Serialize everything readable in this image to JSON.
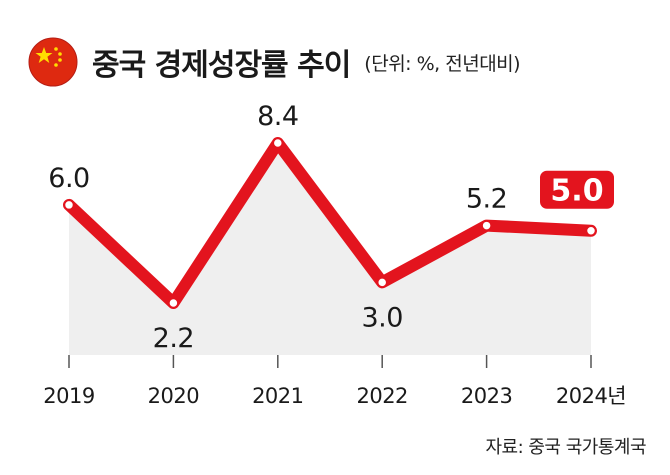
{
  "header": {
    "title": "중국 경제성장률 추이",
    "unit": "(단위: %, 전년대비)",
    "flag_icon": "china-flag-icon"
  },
  "source": "자료: 중국 국가통계국",
  "colors": {
    "line": "#e3141e",
    "area": "#efefef",
    "highlight_label_bg": "#e3141e",
    "highlight_label_text": "#ffffff",
    "axis": "#555555",
    "flag_red": "#de2910",
    "flag_star": "#ffde00"
  },
  "chart_data": {
    "type": "area",
    "categories": [
      "2019",
      "2020",
      "2021",
      "2022",
      "2023",
      "2024년"
    ],
    "values": [
      6.0,
      2.2,
      8.4,
      3.0,
      5.2,
      5.0
    ],
    "labels": [
      "6.0",
      "2.2",
      "8.4",
      "3.0",
      "5.2",
      "5.0"
    ],
    "highlight_index": 5,
    "label_positions": [
      "above",
      "below",
      "above",
      "below",
      "above",
      "above"
    ],
    "title": "중국 경제성장률 추이",
    "ylabel": "",
    "xlabel": "",
    "grid": false,
    "legend": "none"
  }
}
